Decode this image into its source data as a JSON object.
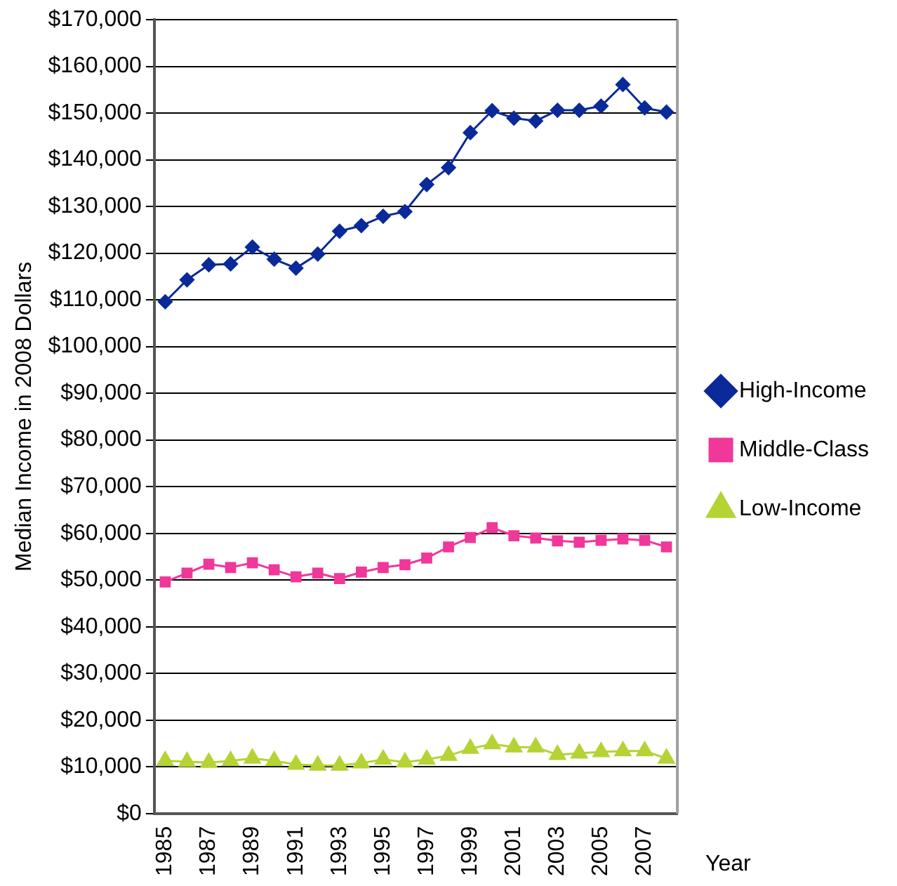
{
  "chart_data": {
    "type": "line",
    "xlabel": "Year",
    "ylabel": "Median Income in 2008 Dollars",
    "categories": [
      "1985",
      null,
      "1987",
      null,
      "1989",
      null,
      "1991",
      null,
      "1993",
      null,
      "1995",
      null,
      "1997",
      null,
      "1999",
      null,
      "2001",
      null,
      "2003",
      null,
      "2005",
      null,
      "2007",
      null
    ],
    "series": [
      {
        "name": "High-Income",
        "color": "#0b2a99",
        "marker": "diamond",
        "values": [
          109600,
          114300,
          117500,
          117700,
          121300,
          118700,
          116800,
          119800,
          124700,
          125900,
          127900,
          128900,
          134700,
          138300,
          145800,
          150500,
          148900,
          148300,
          150600,
          150600,
          151500,
          156100,
          151100,
          150200
        ]
      },
      {
        "name": "Middle-Class",
        "color": "#f0379a",
        "marker": "square",
        "values": [
          49600,
          51500,
          53400,
          52700,
          53700,
          52200,
          50700,
          51500,
          50300,
          51700,
          52700,
          53300,
          54700,
          57100,
          59100,
          61200,
          59500,
          59000,
          58400,
          58100,
          58500,
          58800,
          58500,
          57100
        ]
      },
      {
        "name": "Low-Income",
        "color": "#b5d334",
        "marker": "triangle",
        "values": [
          11300,
          11100,
          10900,
          11300,
          11800,
          11300,
          10500,
          10300,
          10300,
          10800,
          11600,
          11000,
          11600,
          12400,
          13900,
          14900,
          14200,
          14200,
          12600,
          12900,
          13200,
          13400,
          13400,
          11800
        ]
      }
    ],
    "ylim": [
      0,
      170000
    ],
    "yticks": [
      {
        "value": 0,
        "label": "$0"
      },
      {
        "value": 10000,
        "label": "$10,000"
      },
      {
        "value": 20000,
        "label": "$20,000"
      },
      {
        "value": 30000,
        "label": "$30,000"
      },
      {
        "value": 40000,
        "label": "$40,000"
      },
      {
        "value": 50000,
        "label": "$50,000"
      },
      {
        "value": 60000,
        "label": "$60,000"
      },
      {
        "value": 70000,
        "label": "$70,000"
      },
      {
        "value": 80000,
        "label": "$80,000"
      },
      {
        "value": 90000,
        "label": "$90,000"
      },
      {
        "value": 100000,
        "label": "$100,000"
      },
      {
        "value": 110000,
        "label": "$110,000"
      },
      {
        "value": 120000,
        "label": "$120,000"
      },
      {
        "value": 130000,
        "label": "$130,000"
      },
      {
        "value": 140000,
        "label": "$140,000"
      },
      {
        "value": 150000,
        "label": "$150,000"
      },
      {
        "value": 160000,
        "label": "$160,000"
      },
      {
        "value": 170000,
        "label": "$170,000"
      }
    ],
    "grid": "y",
    "legend": "right"
  }
}
